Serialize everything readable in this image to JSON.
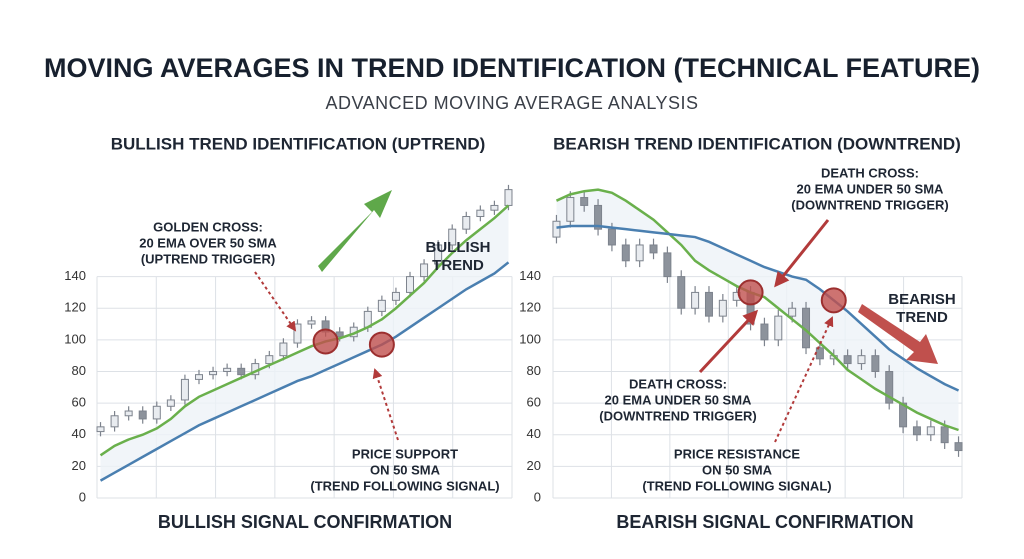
{
  "title": "MOVING AVERAGES IN TREND IDENTIFICATION (TECHNICAL FEATURE)",
  "subtitle": "ADVANCED MOVING AVERAGE ANALYSIS",
  "chart_data": [
    {
      "type": "candlestick",
      "title": "BULLISH TREND IDENTIFICATION (UPTREND)",
      "footer": "BULLISH SIGNAL CONFIRMATION",
      "ylim": [
        0,
        215
      ],
      "yticks": [
        0,
        20,
        40,
        60,
        80,
        100,
        120,
        140
      ],
      "grid": true,
      "open": [
        42,
        45,
        52,
        55,
        50,
        58,
        62,
        75,
        78,
        80,
        82,
        78,
        85,
        90,
        98,
        110,
        112,
        105,
        102,
        108,
        118,
        125,
        130,
        140,
        148,
        160,
        170,
        178,
        182,
        185
      ],
      "high": [
        48,
        55,
        58,
        58,
        61,
        65,
        78,
        81,
        83,
        85,
        85,
        88,
        93,
        101,
        113,
        115,
        115,
        108,
        111,
        121,
        128,
        133,
        143,
        151,
        163,
        173,
        181,
        185,
        188,
        198
      ],
      "low": [
        39,
        42,
        49,
        47,
        47,
        55,
        59,
        72,
        75,
        77,
        75,
        75,
        82,
        87,
        95,
        107,
        102,
        99,
        99,
        105,
        115,
        122,
        127,
        137,
        145,
        157,
        167,
        175,
        179,
        182
      ],
      "close": [
        45,
        52,
        55,
        50,
        58,
        62,
        75,
        78,
        80,
        82,
        78,
        85,
        90,
        98,
        110,
        112,
        105,
        102,
        108,
        118,
        125,
        130,
        140,
        148,
        160,
        170,
        178,
        182,
        185,
        195
      ],
      "series": [
        {
          "color": "#6ab04c",
          "values": [
            27,
            33,
            37,
            40,
            44,
            50,
            58,
            64,
            68,
            72,
            76,
            80,
            84,
            88,
            92,
            96,
            99,
            101,
            104,
            108,
            113,
            120,
            128,
            136,
            146,
            155,
            163,
            170,
            177,
            185
          ]
        },
        {
          "color": "#4a7fb0",
          "values": [
            11,
            16,
            21,
            26,
            31,
            36,
            41,
            46,
            50,
            54,
            58,
            62,
            66,
            70,
            74,
            77,
            81,
            85,
            89,
            93,
            97,
            102,
            108,
            114,
            120,
            126,
            132,
            137,
            142,
            149
          ]
        }
      ],
      "annotations": [
        {
          "lines": [
            "GOLDEN CROSS:",
            "20 EMA OVER 50 SMA",
            "(UPTREND TRIGGER)"
          ]
        },
        {
          "lines": [
            "BULLISH",
            "TREND"
          ]
        },
        {
          "lines": [
            "PRICE SUPPORT",
            "ON 50 SMA",
            "(TREND FOLLOWING SIGNAL)"
          ]
        }
      ]
    },
    {
      "type": "candlestick",
      "title": "BEARISH TREND IDENTIFICATION (DOWNTREND)",
      "footer": "BEARISH SIGNAL CONFIRMATION",
      "ylim": [
        0,
        215
      ],
      "yticks": [
        0,
        20,
        40,
        60,
        80,
        100,
        120,
        140
      ],
      "grid": true,
      "open": [
        165,
        175,
        190,
        185,
        170,
        160,
        150,
        160,
        155,
        140,
        120,
        130,
        115,
        125,
        130,
        110,
        100,
        115,
        120,
        95,
        88,
        90,
        85,
        90,
        80,
        60,
        45,
        40,
        45,
        35
      ],
      "high": [
        179,
        194,
        194,
        189,
        174,
        164,
        164,
        164,
        159,
        144,
        134,
        134,
        129,
        134,
        134,
        114,
        119,
        124,
        124,
        99,
        94,
        94,
        94,
        94,
        84,
        64,
        49,
        49,
        49,
        39
      ],
      "low": [
        161,
        171,
        181,
        166,
        156,
        146,
        146,
        151,
        136,
        116,
        116,
        111,
        111,
        121,
        106,
        96,
        96,
        111,
        91,
        84,
        84,
        81,
        81,
        76,
        56,
        41,
        36,
        36,
        31,
        26
      ],
      "close": [
        175,
        190,
        185,
        170,
        160,
        150,
        160,
        155,
        140,
        120,
        130,
        115,
        125,
        130,
        110,
        100,
        115,
        120,
        95,
        88,
        90,
        85,
        90,
        80,
        60,
        45,
        40,
        45,
        35,
        30
      ],
      "series": [
        {
          "color": "#6ab04c",
          "values": [
            188,
            192,
            194,
            195,
            193,
            188,
            182,
            176,
            168,
            160,
            150,
            144,
            139,
            134,
            130,
            127,
            120,
            113,
            106,
            98,
            90,
            81,
            75,
            69,
            64,
            59,
            54,
            50,
            46,
            43
          ]
        },
        {
          "color": "#4a7fb0",
          "values": [
            171,
            172,
            172,
            172,
            171,
            170,
            169,
            168,
            167,
            166,
            165,
            162,
            158,
            154,
            150,
            146,
            143,
            140,
            138,
            132,
            125,
            118,
            110,
            102,
            94,
            88,
            82,
            77,
            72,
            68
          ]
        }
      ],
      "annotations": [
        {
          "lines": [
            "DEATH CROSS:",
            "20 EMA UNDER 50 SMA",
            "(DOWNTREND TRIGGER)"
          ]
        },
        {
          "lines": [
            "BEARISH",
            "TREND"
          ]
        },
        {
          "lines": [
            "DEATH CROSS:",
            "20 EMA UNDER 50 SMA",
            "(DOWNTREND TRIGGER)"
          ]
        },
        {
          "lines": [
            "PRICE RESISTANCE",
            "ON 50 SMA",
            "(TREND FOLLOWING SIGNAL)"
          ]
        }
      ]
    }
  ]
}
